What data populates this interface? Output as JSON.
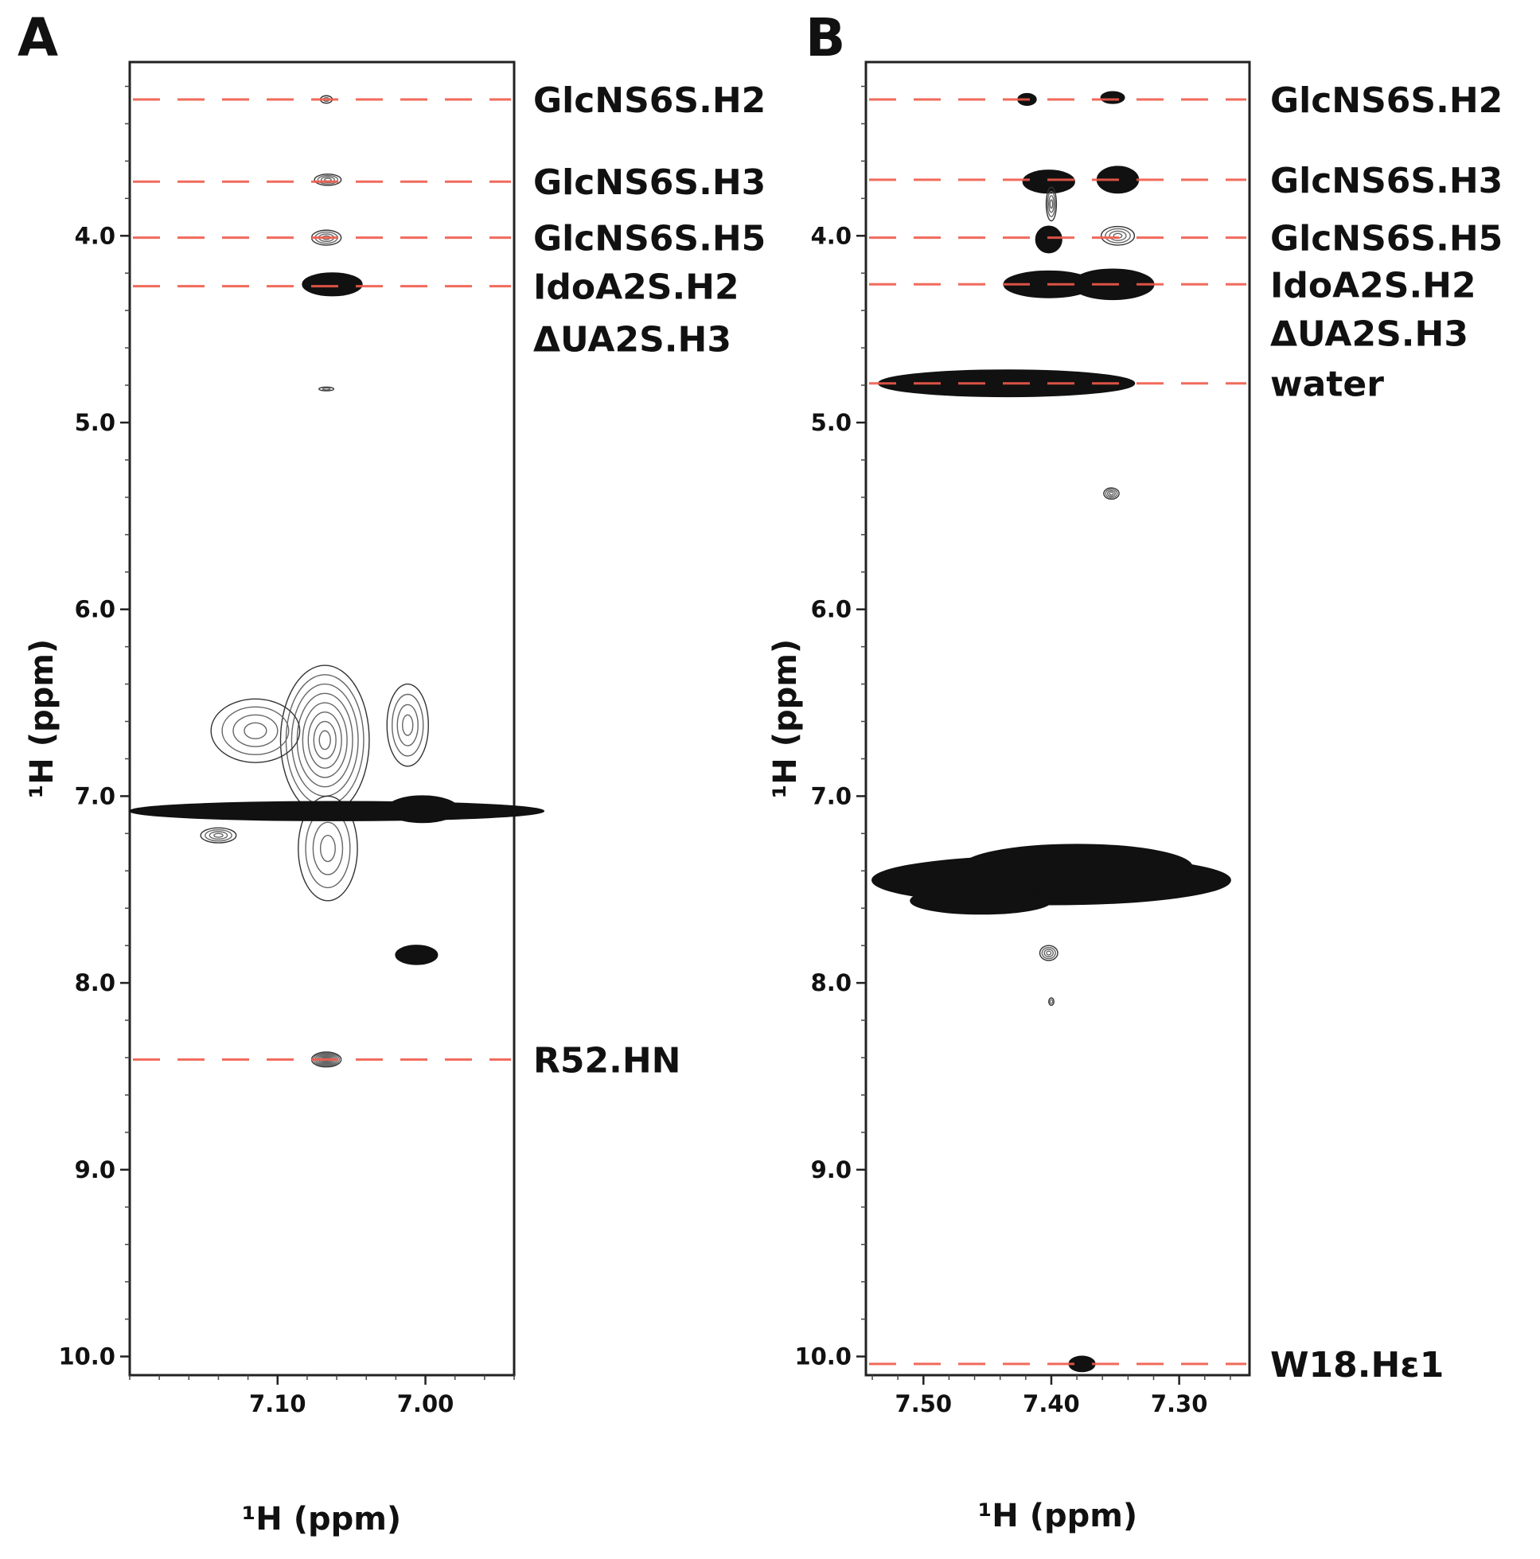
{
  "figure": {
    "description_labels": [
      "A",
      "B"
    ]
  },
  "colors": {
    "assignment_line": "#f05a4a",
    "contour": "#111111",
    "frame": "#222222"
  },
  "chart_data": [
    {
      "panel": "A",
      "type": "contour",
      "xlabel": "¹H (ppm)",
      "ylabel": "¹H (ppm)",
      "xlim": [
        7.2,
        6.94
      ],
      "ylim": [
        3.07,
        10.1
      ],
      "x_ticks": [
        7.1,
        7.0
      ],
      "x_tick_labels": [
        "7.10",
        "7.00"
      ],
      "y_ticks": [
        4.0,
        5.0,
        6.0,
        7.0,
        8.0,
        9.0,
        10.0
      ],
      "y_tick_labels": [
        "4.0",
        "5.0",
        "6.0",
        "7.0",
        "8.0",
        "9.0",
        "10.0"
      ],
      "assignments": [
        {
          "label": "GlcNS6S.H2",
          "ppm": 3.27
        },
        {
          "label": "GlcNS6S.H3",
          "ppm": 3.71
        },
        {
          "label": "GlcNS6S.H5",
          "ppm": 4.01
        },
        {
          "label": "IdoA2S.H2",
          "ppm": 4.27
        },
        {
          "label": "ΔUA2S.H3",
          "ppm": 4.55,
          "line": false
        },
        {
          "label": "R52.HN",
          "ppm": 8.41
        }
      ],
      "peaks": [
        {
          "x": 7.067,
          "y": 3.27,
          "rx": 0.004,
          "ry": 0.02,
          "level": 1
        },
        {
          "x": 7.066,
          "y": 3.7,
          "rx": 0.009,
          "ry": 0.03,
          "level": 2
        },
        {
          "x": 7.067,
          "y": 4.01,
          "rx": 0.01,
          "ry": 0.04,
          "level": 2
        },
        {
          "x": 7.063,
          "y": 4.26,
          "rx": 0.02,
          "ry": 0.06,
          "level": 4
        },
        {
          "x": 7.067,
          "y": 4.82,
          "rx": 0.005,
          "ry": 0.01,
          "level": 1
        },
        {
          "x": 7.068,
          "y": 6.7,
          "rx": 0.03,
          "ry": 0.4,
          "level": 3
        },
        {
          "x": 7.012,
          "y": 6.62,
          "rx": 0.014,
          "ry": 0.22,
          "level": 2
        },
        {
          "x": 7.115,
          "y": 6.65,
          "rx": 0.03,
          "ry": 0.17,
          "level": 2
        },
        {
          "x": 7.066,
          "y": 7.28,
          "rx": 0.02,
          "ry": 0.28,
          "level": 2
        },
        {
          "x": 7.06,
          "y": 7.08,
          "rx": 0.14,
          "ry": 0.05,
          "level": 4
        },
        {
          "x": 7.002,
          "y": 7.07,
          "rx": 0.024,
          "ry": 0.07,
          "level": 4
        },
        {
          "x": 7.14,
          "y": 7.21,
          "rx": 0.012,
          "ry": 0.04,
          "level": 2
        },
        {
          "x": 7.006,
          "y": 7.85,
          "rx": 0.014,
          "ry": 0.05,
          "level": 4
        },
        {
          "x": 7.067,
          "y": 8.41,
          "rx": 0.01,
          "ry": 0.04,
          "level": 3
        }
      ]
    },
    {
      "panel": "B",
      "type": "contour",
      "xlabel": "¹H (ppm)",
      "ylabel": "¹H (ppm)",
      "xlim": [
        7.545,
        7.245
      ],
      "ylim": [
        3.07,
        10.1
      ],
      "x_ticks": [
        7.5,
        7.4,
        7.3
      ],
      "x_tick_labels": [
        "7.50",
        "7.40",
        "7.30"
      ],
      "y_ticks": [
        4.0,
        5.0,
        6.0,
        7.0,
        8.0,
        9.0,
        10.0
      ],
      "y_tick_labels": [
        "4.0",
        "5.0",
        "6.0",
        "7.0",
        "8.0",
        "9.0",
        "10.0"
      ],
      "assignments": [
        {
          "label": "GlcNS6S.H2",
          "ppm": 3.27
        },
        {
          "label": "GlcNS6S.H3",
          "ppm": 3.7
        },
        {
          "label": "GlcNS6S.H5",
          "ppm": 4.01
        },
        {
          "label": "IdoA2S.H2",
          "ppm": 4.26
        },
        {
          "label": "ΔUA2S.H3",
          "ppm": 4.52,
          "line": false
        },
        {
          "label": "water",
          "ppm": 4.79
        },
        {
          "label": "W18.Hε1",
          "ppm": 10.04
        }
      ],
      "peaks": [
        {
          "x": 7.419,
          "y": 3.27,
          "rx": 0.007,
          "ry": 0.03,
          "level": 4
        },
        {
          "x": 7.352,
          "y": 3.26,
          "rx": 0.009,
          "ry": 0.03,
          "level": 4
        },
        {
          "x": 7.402,
          "y": 3.71,
          "rx": 0.02,
          "ry": 0.06,
          "level": 4
        },
        {
          "x": 7.348,
          "y": 3.7,
          "rx": 0.016,
          "ry": 0.07,
          "level": 4
        },
        {
          "x": 7.4,
          "y": 3.83,
          "rx": 0.004,
          "ry": 0.09,
          "level": 2
        },
        {
          "x": 7.402,
          "y": 4.02,
          "rx": 0.01,
          "ry": 0.07,
          "level": 4
        },
        {
          "x": 7.348,
          "y": 4.0,
          "rx": 0.013,
          "ry": 0.05,
          "level": 2
        },
        {
          "x": 7.402,
          "y": 4.26,
          "rx": 0.035,
          "ry": 0.07,
          "level": 4
        },
        {
          "x": 7.352,
          "y": 4.26,
          "rx": 0.032,
          "ry": 0.08,
          "level": 4
        },
        {
          "x": 7.435,
          "y": 4.79,
          "rx": 0.1,
          "ry": 0.07,
          "level": 4
        },
        {
          "x": 7.353,
          "y": 5.38,
          "rx": 0.006,
          "ry": 0.03,
          "level": 2
        },
        {
          "x": 7.4,
          "y": 7.45,
          "rx": 0.14,
          "ry": 0.13,
          "level": 4
        },
        {
          "x": 7.38,
          "y": 7.38,
          "rx": 0.09,
          "ry": 0.12,
          "level": 4
        },
        {
          "x": 7.455,
          "y": 7.56,
          "rx": 0.055,
          "ry": 0.07,
          "level": 4
        },
        {
          "x": 7.402,
          "y": 7.84,
          "rx": 0.007,
          "ry": 0.04,
          "level": 2
        },
        {
          "x": 7.4,
          "y": 8.1,
          "rx": 0.002,
          "ry": 0.02,
          "level": 1
        },
        {
          "x": 7.376,
          "y": 10.04,
          "rx": 0.01,
          "ry": 0.04,
          "level": 4
        }
      ]
    }
  ]
}
